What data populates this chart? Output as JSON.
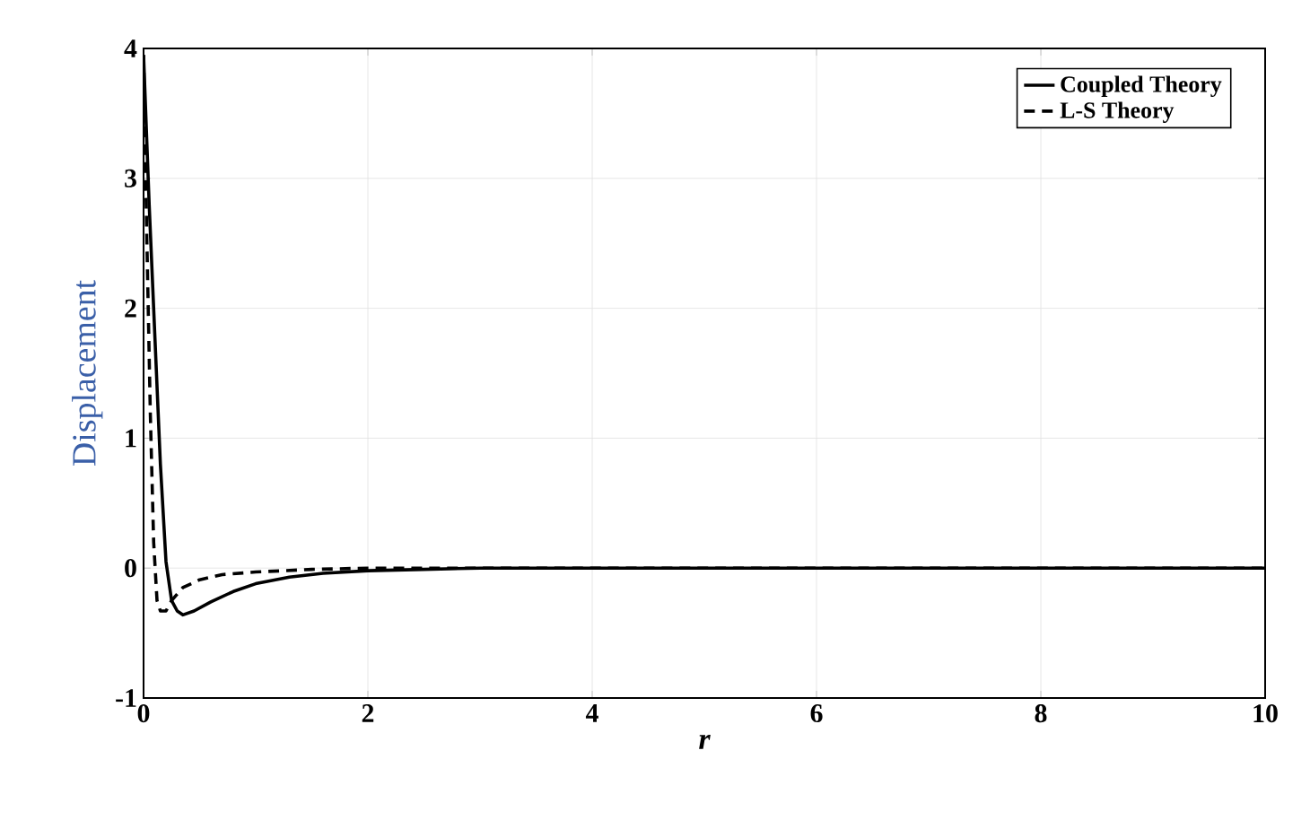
{
  "chart_data": {
    "type": "line",
    "xlabel": "r",
    "ylabel": "Displacement",
    "xlim": [
      0,
      10
    ],
    "ylim": [
      -1,
      4
    ],
    "xticks": [
      0,
      2,
      4,
      6,
      8,
      10
    ],
    "yticks": [
      -1,
      0,
      1,
      2,
      3,
      4
    ],
    "grid": true,
    "legend": "top right",
    "marker": "none",
    "series": [
      {
        "name": "Coupled Theory",
        "color": "#000000",
        "line_style": "solid",
        "x": [
          0,
          0.05,
          0.1,
          0.15,
          0.2,
          0.25,
          0.3,
          0.35,
          0.45,
          0.6,
          0.8,
          1.0,
          1.3,
          1.6,
          2,
          2.5,
          3,
          10
        ],
        "values": [
          3.95,
          2.8,
          1.8,
          0.8,
          0.05,
          -0.25,
          -0.33,
          -0.36,
          -0.33,
          -0.26,
          -0.18,
          -0.12,
          -0.07,
          -0.04,
          -0.02,
          -0.01,
          0,
          0
        ]
      },
      {
        "name": "L-S Theory",
        "color": "#000000",
        "line_style": "dashed",
        "x": [
          0,
          0.03,
          0.06,
          0.09,
          0.12,
          0.15,
          0.2,
          0.25,
          0.35,
          0.5,
          0.7,
          1.0,
          1.5,
          2,
          10
        ],
        "values": [
          3.95,
          2.5,
          1.2,
          0.2,
          -0.25,
          -0.33,
          -0.33,
          -0.25,
          -0.15,
          -0.09,
          -0.05,
          -0.03,
          -0.01,
          0,
          0
        ]
      }
    ]
  }
}
